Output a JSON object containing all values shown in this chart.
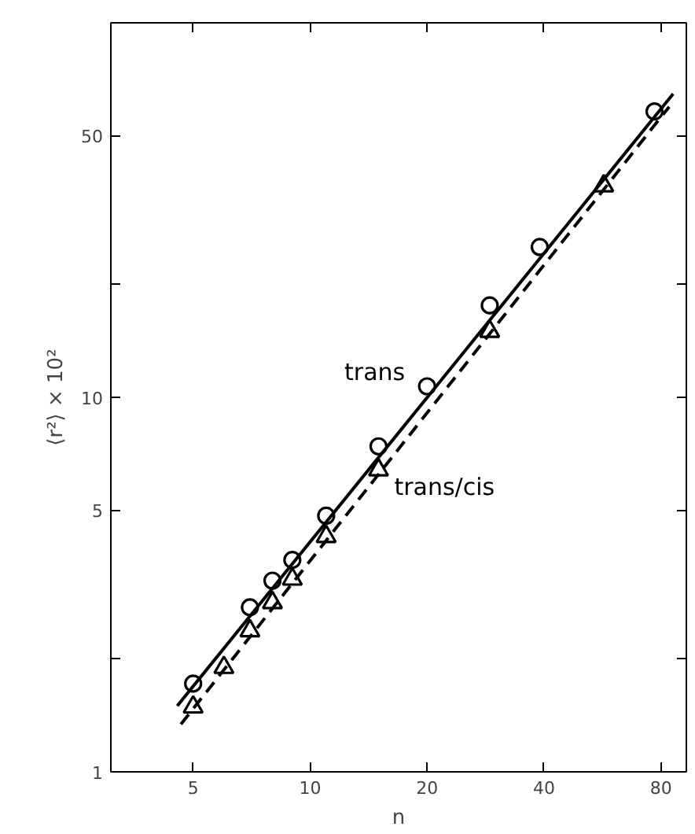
{
  "chart_data": {
    "type": "scatter",
    "xlabel": "n",
    "ylabel": "⟨r²⟩ × 10²",
    "log": "xy",
    "grid": false,
    "xlim": [
      3.07,
      93
    ],
    "ylim": [
      1,
      100
    ],
    "xticks": [
      5,
      10,
      20,
      40,
      80
    ],
    "yticks": [
      1,
      {
        "value": 2,
        "label": null
      },
      5,
      10,
      {
        "value": 20,
        "label": null
      },
      50
    ],
    "series": [
      {
        "name": "trans",
        "marker": "circle",
        "color": "#000000",
        "x": [
          5,
          7,
          8,
          9,
          11,
          15,
          20,
          29,
          39,
          77
        ],
        "values": [
          1.72,
          2.75,
          3.24,
          3.68,
          4.83,
          7.4,
          10.7,
          17.6,
          25.2,
          58
        ]
      },
      {
        "name": "trans/cis",
        "marker": "triangle",
        "color": "#000000",
        "x": [
          5,
          6,
          7,
          8,
          9,
          11,
          15,
          29,
          57
        ],
        "values": [
          1.49,
          1.9,
          2.38,
          2.83,
          3.27,
          4.25,
          6.4,
          15.0,
          36.7
        ]
      },
      {
        "type": "line",
        "line_style": "solid",
        "color": "#000000",
        "x": [
          4.55,
          86
        ],
        "values": [
          1.5,
          64.6
        ]
      },
      {
        "type": "line",
        "line_style": "dashed",
        "color": "#000000",
        "x": [
          4.65,
          84
        ],
        "values": [
          1.34,
          59.7
        ]
      }
    ]
  }
}
